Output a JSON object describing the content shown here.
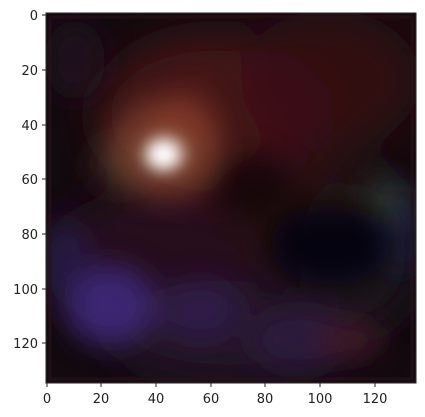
{
  "image": {
    "description_colors": {
      "background": "#140a0e",
      "bright_core": "#fff4ff",
      "glow": "#d07a5a",
      "purple_haze": "#3a2270",
      "red_haze": "#4a1416",
      "frame": "#ffffff",
      "axis": "#222222"
    },
    "axes": {
      "x_range": [
        0,
        135
      ],
      "y_range": [
        0,
        135
      ],
      "x_ticks": [
        "0",
        "20",
        "40",
        "60",
        "80",
        "100",
        "120"
      ],
      "y_ticks": [
        "0",
        "20",
        "40",
        "60",
        "80",
        "100",
        "120"
      ]
    }
  }
}
